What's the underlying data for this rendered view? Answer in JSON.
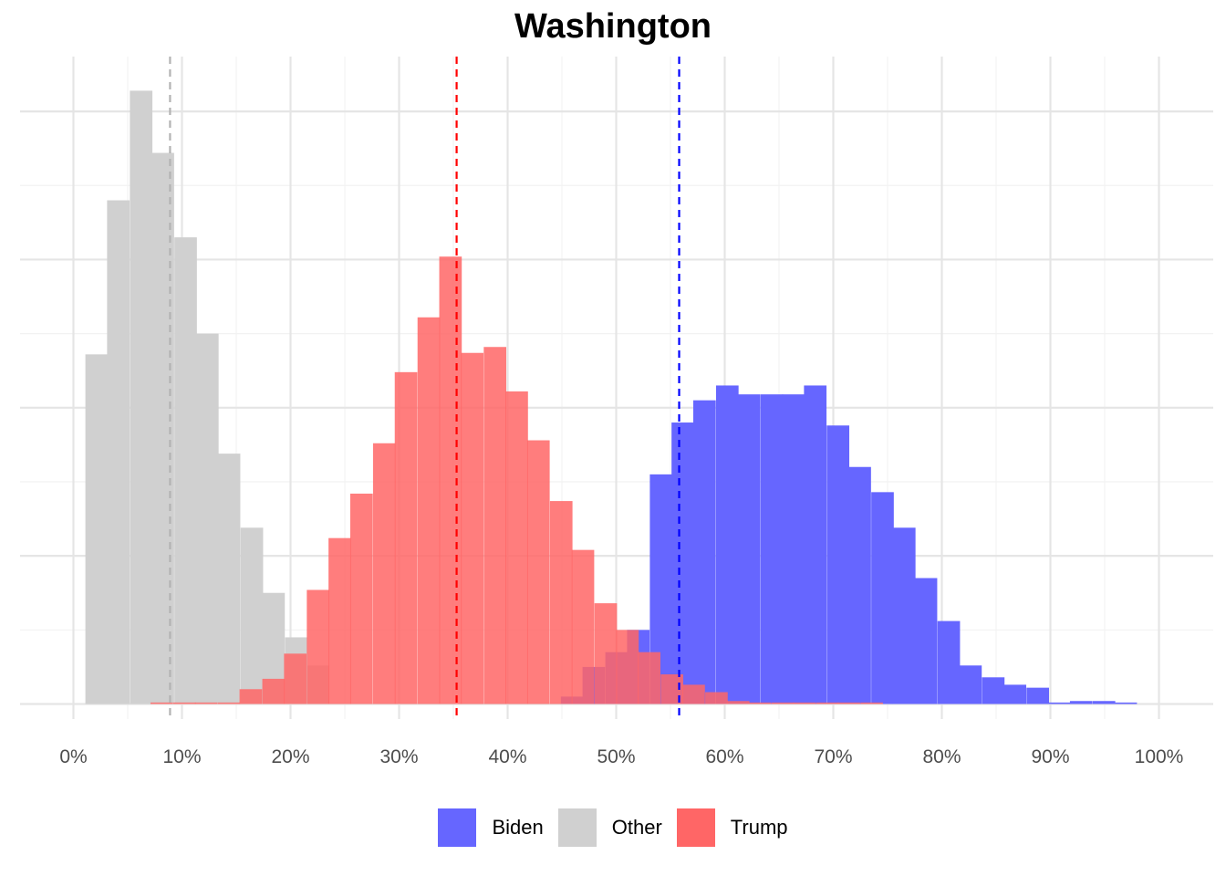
{
  "chart_data": {
    "type": "bar",
    "subtype": "overlapping-histogram",
    "title": "Washington",
    "xlabel": "",
    "ylabel": "",
    "xlim": [
      -0.05,
      1.05
    ],
    "ylim": [
      0,
      420
    ],
    "x_ticks": [
      0,
      0.1,
      0.2,
      0.3,
      0.4,
      0.5,
      0.6,
      0.7,
      0.8,
      0.9,
      1.0
    ],
    "x_tick_labels": [
      "0%",
      "10%",
      "20%",
      "30%",
      "40%",
      "50%",
      "60%",
      "70%",
      "80%",
      "90%",
      "100%"
    ],
    "y_gridlines": [
      0,
      100,
      200,
      300,
      400
    ],
    "y_tick_labels_shown": false,
    "grid": true,
    "legend_position": "bottom",
    "bin_width": 0.0204,
    "series": [
      {
        "name": "Biden",
        "color": "#6666ff",
        "bins": [
          [
            0.429,
            0.0
          ],
          [
            0.449,
            5
          ],
          [
            0.469,
            25
          ],
          [
            0.49,
            35
          ],
          [
            0.51,
            50
          ],
          [
            0.531,
            155
          ],
          [
            0.551,
            190
          ],
          [
            0.571,
            205
          ],
          [
            0.592,
            215
          ],
          [
            0.612,
            209
          ],
          [
            0.633,
            209
          ],
          [
            0.653,
            209
          ],
          [
            0.673,
            215
          ],
          [
            0.694,
            188
          ],
          [
            0.714,
            160
          ],
          [
            0.735,
            143
          ],
          [
            0.755,
            119
          ],
          [
            0.775,
            85
          ],
          [
            0.796,
            56
          ],
          [
            0.816,
            26
          ],
          [
            0.837,
            18
          ],
          [
            0.857,
            13
          ],
          [
            0.878,
            11
          ],
          [
            0.898,
            1
          ],
          [
            0.918,
            2
          ],
          [
            0.939,
            2
          ],
          [
            0.959,
            1
          ]
        ]
      },
      {
        "name": "Other",
        "color": "#d0d0d0",
        "bins": [
          [
            0.011,
            236
          ],
          [
            0.031,
            340
          ],
          [
            0.052,
            414
          ],
          [
            0.072,
            372
          ],
          [
            0.093,
            315
          ],
          [
            0.113,
            250
          ],
          [
            0.133,
            169
          ],
          [
            0.154,
            119
          ],
          [
            0.174,
            75
          ],
          [
            0.195,
            45
          ],
          [
            0.215,
            26
          ]
        ]
      },
      {
        "name": "Trump",
        "color": "#ff6666",
        "bins": [
          [
            0.071,
            1
          ],
          [
            0.092,
            1
          ],
          [
            0.112,
            1
          ],
          [
            0.133,
            1
          ],
          [
            0.153,
            10
          ],
          [
            0.174,
            17
          ],
          [
            0.194,
            34
          ],
          [
            0.215,
            77
          ],
          [
            0.235,
            112
          ],
          [
            0.255,
            142
          ],
          [
            0.276,
            176
          ],
          [
            0.296,
            224
          ],
          [
            0.317,
            261
          ],
          [
            0.337,
            302
          ],
          [
            0.357,
            237
          ],
          [
            0.378,
            241
          ],
          [
            0.398,
            211
          ],
          [
            0.418,
            178
          ],
          [
            0.439,
            137
          ],
          [
            0.459,
            104
          ],
          [
            0.48,
            68
          ],
          [
            0.5,
            50
          ],
          [
            0.52,
            35
          ],
          [
            0.541,
            20
          ],
          [
            0.561,
            13
          ],
          [
            0.582,
            8
          ],
          [
            0.602,
            2
          ],
          [
            0.622,
            1
          ],
          [
            0.643,
            1
          ],
          [
            0.663,
            1
          ],
          [
            0.684,
            1
          ],
          [
            0.704,
            1
          ],
          [
            0.725,
            1
          ]
        ]
      }
    ],
    "reference_lines": [
      {
        "series": "Other",
        "x": 0.089,
        "color": "#b3b3b3",
        "style": "dashed"
      },
      {
        "series": "Trump",
        "x": 0.353,
        "color": "#ff0000",
        "style": "dashed"
      },
      {
        "series": "Biden",
        "x": 0.558,
        "color": "#0000ff",
        "style": "dashed"
      }
    ]
  },
  "legend": {
    "items": [
      {
        "label": "Biden",
        "color": "#6666ff"
      },
      {
        "label": "Other",
        "color": "#d0d0d0"
      },
      {
        "label": "Trump",
        "color": "#ff6666"
      }
    ]
  }
}
